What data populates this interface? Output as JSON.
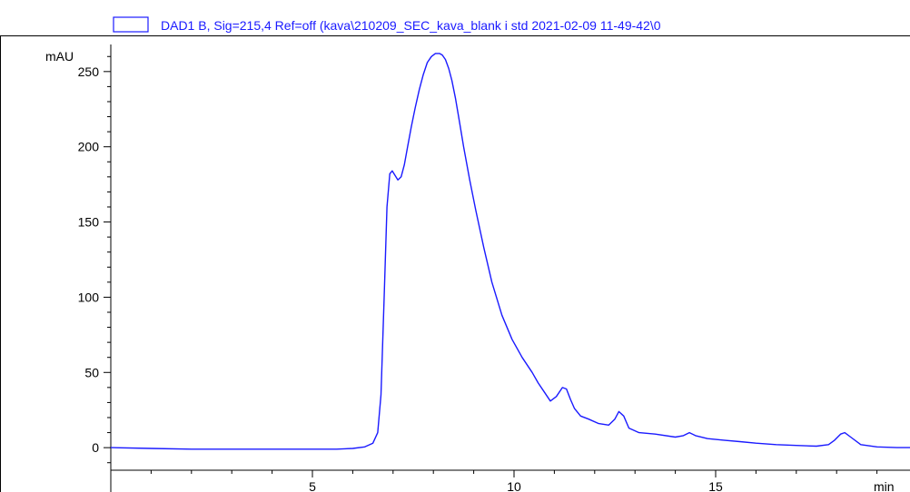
{
  "chart_data": {
    "type": "line",
    "legend": "DAD1 B, Sig=215,4 Ref=off (kava\\210209_SEC_kava_blank i std 2021-02-09 11-49-42\\0",
    "ylabel": "mAU",
    "xlabel": "min",
    "xlim": [
      0,
      20
    ],
    "ylim": [
      -15,
      268
    ],
    "x_ticks": [
      5,
      10,
      15
    ],
    "y_ticks": [
      0,
      50,
      100,
      150,
      200,
      250
    ],
    "grid": false,
    "legend_position": "top",
    "series_color": "#1a1aff",
    "series": [
      {
        "x": [
          0.0,
          1.0,
          2.0,
          3.0,
          4.0,
          5.0,
          5.6,
          6.0,
          6.3,
          6.5,
          6.62,
          6.7,
          6.78,
          6.85,
          6.92,
          6.98,
          7.05,
          7.12,
          7.2,
          7.28,
          7.36,
          7.45,
          7.55,
          7.65,
          7.75,
          7.85,
          7.95,
          8.05,
          8.15,
          8.22,
          8.3,
          8.38,
          8.46,
          8.55,
          8.65,
          8.75,
          8.9,
          9.05,
          9.25,
          9.45,
          9.7,
          9.95,
          10.2,
          10.45,
          10.6,
          10.75,
          10.9,
          11.05,
          11.2,
          11.3,
          11.4,
          11.5,
          11.65,
          11.85,
          12.1,
          12.35,
          12.5,
          12.6,
          12.72,
          12.85,
          13.1,
          13.5,
          14.0,
          14.2,
          14.35,
          14.5,
          14.8,
          15.2,
          15.6,
          16.0,
          16.5,
          17.0,
          17.5,
          17.8,
          17.95,
          18.1,
          18.2,
          18.35,
          18.6,
          19.0,
          19.5,
          20.0
        ],
        "y": [
          0,
          -0.5,
          -1,
          -1,
          -1,
          -1,
          -1,
          -0.5,
          0.5,
          3,
          10,
          35,
          100,
          160,
          182,
          184,
          181,
          178,
          180,
          188,
          200,
          213,
          226,
          238,
          248,
          256,
          260,
          262,
          262,
          261,
          258,
          252,
          244,
          232,
          216,
          200,
          178,
          158,
          133,
          110,
          88,
          72,
          60,
          50,
          43,
          37,
          31,
          34,
          40,
          39,
          32,
          26,
          21,
          19,
          16,
          15,
          19,
          24,
          21,
          13,
          10,
          9,
          7,
          8,
          10,
          8,
          6,
          5,
          4,
          3,
          2,
          1.5,
          1,
          2,
          5,
          9,
          10,
          7,
          2,
          0.5,
          0,
          0
        ]
      }
    ]
  }
}
